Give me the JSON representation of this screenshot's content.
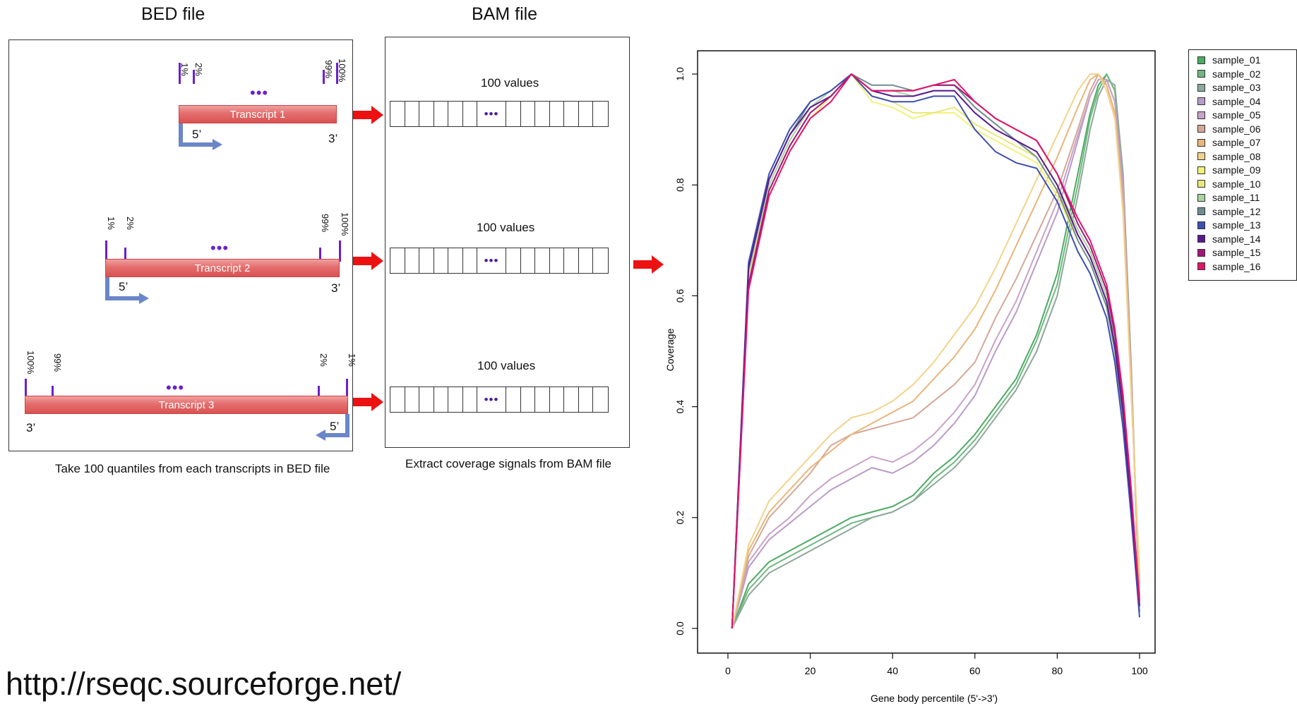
{
  "bed": {
    "title": "BED file",
    "caption": "Take 100 quantiles from each transcripts in BED file",
    "transcripts": [
      {
        "label": "Transcript 1",
        "five": "5’",
        "three": "3’"
      },
      {
        "label": "Transcript 2",
        "five": "5’",
        "three": "3’"
      },
      {
        "label": "Transcript 3",
        "five": "5’",
        "three": "3’"
      }
    ],
    "pct": {
      "p1": "1%",
      "p2": "2%",
      "p99": "99%",
      "p100": "100%"
    },
    "ellipsis": "•••"
  },
  "bam": {
    "title": "BAM file",
    "values_label": "100 values",
    "caption": "Extract coverage signals from BAM file"
  },
  "url": "http://rseqc.sourceforge.net/",
  "colors": {
    "tick_purple": "#6a1fd0",
    "bar_red": "#e06060",
    "arrow_blue": "#6b86c8",
    "arrow_red": "#ee1111"
  },
  "chart_data": {
    "type": "line",
    "title": "",
    "xlabel": "Gene body percentile (5'->3')",
    "ylabel": "Coverage",
    "xlim": [
      0,
      100
    ],
    "ylim": [
      0,
      1
    ],
    "xticks": [
      0,
      20,
      40,
      60,
      80,
      100
    ],
    "yticks": [
      "0.0",
      "0.2",
      "0.4",
      "0.6",
      "0.8",
      "1.0"
    ],
    "legend_position": "outside-top-right",
    "x": [
      1,
      5,
      10,
      15,
      20,
      25,
      30,
      35,
      40,
      45,
      50,
      55,
      60,
      65,
      70,
      75,
      80,
      85,
      88,
      90,
      92,
      94,
      96,
      98,
      100
    ],
    "series": [
      {
        "name": "sample_01",
        "color": "#4daa63",
        "values": [
          0.0,
          0.08,
          0.12,
          0.14,
          0.16,
          0.18,
          0.2,
          0.21,
          0.22,
          0.24,
          0.28,
          0.31,
          0.35,
          0.4,
          0.45,
          0.53,
          0.64,
          0.82,
          0.93,
          0.98,
          1.0,
          0.97,
          0.8,
          0.45,
          0.04
        ]
      },
      {
        "name": "sample_02",
        "color": "#6fb880",
        "values": [
          0.0,
          0.07,
          0.11,
          0.13,
          0.15,
          0.17,
          0.19,
          0.2,
          0.21,
          0.23,
          0.27,
          0.3,
          0.34,
          0.39,
          0.44,
          0.52,
          0.62,
          0.8,
          0.92,
          0.97,
          1.0,
          0.97,
          0.8,
          0.45,
          0.04
        ]
      },
      {
        "name": "sample_03",
        "color": "#8fa89a",
        "values": [
          0.0,
          0.06,
          0.1,
          0.12,
          0.14,
          0.16,
          0.18,
          0.2,
          0.21,
          0.23,
          0.26,
          0.29,
          0.33,
          0.38,
          0.43,
          0.5,
          0.6,
          0.78,
          0.9,
          0.96,
          0.99,
          0.98,
          0.82,
          0.47,
          0.04
        ]
      },
      {
        "name": "sample_04",
        "color": "#b99bc9",
        "values": [
          0.0,
          0.11,
          0.16,
          0.19,
          0.22,
          0.25,
          0.27,
          0.29,
          0.28,
          0.3,
          0.33,
          0.37,
          0.42,
          0.5,
          0.57,
          0.66,
          0.75,
          0.88,
          0.96,
          0.99,
          0.99,
          0.95,
          0.8,
          0.45,
          0.05
        ]
      },
      {
        "name": "sample_05",
        "color": "#c7a3c7",
        "values": [
          0.0,
          0.12,
          0.17,
          0.2,
          0.24,
          0.27,
          0.29,
          0.31,
          0.3,
          0.32,
          0.35,
          0.39,
          0.44,
          0.52,
          0.59,
          0.68,
          0.77,
          0.89,
          0.96,
          0.99,
          0.99,
          0.95,
          0.78,
          0.45,
          0.05
        ]
      },
      {
        "name": "sample_06",
        "color": "#d4a898",
        "values": [
          0.0,
          0.13,
          0.2,
          0.24,
          0.28,
          0.33,
          0.35,
          0.36,
          0.37,
          0.38,
          0.41,
          0.44,
          0.48,
          0.56,
          0.63,
          0.71,
          0.79,
          0.9,
          0.97,
          1.0,
          0.98,
          0.93,
          0.78,
          0.45,
          0.06
        ]
      },
      {
        "name": "sample_07",
        "color": "#eab57a",
        "values": [
          0.0,
          0.14,
          0.21,
          0.25,
          0.29,
          0.32,
          0.35,
          0.37,
          0.39,
          0.41,
          0.45,
          0.49,
          0.54,
          0.61,
          0.69,
          0.77,
          0.85,
          0.94,
          0.99,
          1.0,
          0.98,
          0.93,
          0.75,
          0.42,
          0.08
        ]
      },
      {
        "name": "sample_08",
        "color": "#f3d38a",
        "values": [
          0.0,
          0.15,
          0.23,
          0.27,
          0.31,
          0.35,
          0.38,
          0.39,
          0.41,
          0.44,
          0.48,
          0.53,
          0.58,
          0.65,
          0.73,
          0.81,
          0.89,
          0.97,
          1.0,
          1.0,
          0.97,
          0.92,
          0.75,
          0.42,
          0.1
        ]
      },
      {
        "name": "sample_09",
        "color": "#f2f27a",
        "values": [
          0.0,
          0.62,
          0.78,
          0.86,
          0.92,
          0.96,
          1.0,
          0.95,
          0.94,
          0.92,
          0.93,
          0.93,
          0.9,
          0.88,
          0.86,
          0.84,
          0.78,
          0.7,
          0.66,
          0.62,
          0.58,
          0.5,
          0.38,
          0.22,
          0.04
        ]
      },
      {
        "name": "sample_10",
        "color": "#e8e87a",
        "values": [
          0.0,
          0.63,
          0.79,
          0.87,
          0.93,
          0.96,
          1.0,
          0.96,
          0.95,
          0.93,
          0.93,
          0.94,
          0.91,
          0.89,
          0.87,
          0.85,
          0.79,
          0.71,
          0.67,
          0.63,
          0.59,
          0.51,
          0.39,
          0.22,
          0.04
        ]
      },
      {
        "name": "sample_11",
        "color": "#a9d4a0",
        "values": [
          0.0,
          0.64,
          0.8,
          0.88,
          0.94,
          0.97,
          1.0,
          0.97,
          0.97,
          0.96,
          0.97,
          0.97,
          0.93,
          0.9,
          0.88,
          0.86,
          0.8,
          0.72,
          0.68,
          0.64,
          0.6,
          0.52,
          0.4,
          0.23,
          0.04
        ]
      },
      {
        "name": "sample_12",
        "color": "#6f8f8f",
        "values": [
          0.0,
          0.65,
          0.81,
          0.89,
          0.95,
          0.97,
          1.0,
          0.98,
          0.98,
          0.97,
          0.98,
          0.98,
          0.94,
          0.91,
          0.88,
          0.85,
          0.79,
          0.7,
          0.66,
          0.62,
          0.58,
          0.5,
          0.38,
          0.22,
          0.03
        ]
      },
      {
        "name": "sample_13",
        "color": "#3e4fb0",
        "values": [
          0.0,
          0.66,
          0.82,
          0.9,
          0.95,
          0.97,
          1.0,
          0.96,
          0.95,
          0.95,
          0.96,
          0.96,
          0.9,
          0.86,
          0.84,
          0.83,
          0.77,
          0.68,
          0.64,
          0.6,
          0.56,
          0.48,
          0.36,
          0.2,
          0.02
        ]
      },
      {
        "name": "sample_14",
        "color": "#5a1a8f",
        "values": [
          0.0,
          0.65,
          0.81,
          0.89,
          0.94,
          0.96,
          1.0,
          0.97,
          0.96,
          0.96,
          0.97,
          0.97,
          0.93,
          0.9,
          0.88,
          0.86,
          0.8,
          0.71,
          0.67,
          0.63,
          0.59,
          0.51,
          0.39,
          0.22,
          0.04
        ]
      },
      {
        "name": "sample_15",
        "color": "#a0187a",
        "values": [
          0.0,
          0.62,
          0.79,
          0.87,
          0.93,
          0.96,
          1.0,
          0.97,
          0.97,
          0.97,
          0.98,
          0.98,
          0.95,
          0.92,
          0.9,
          0.88,
          0.82,
          0.73,
          0.69,
          0.65,
          0.61,
          0.53,
          0.41,
          0.24,
          0.04
        ]
      },
      {
        "name": "sample_16",
        "color": "#e0166a",
        "values": [
          0.0,
          0.61,
          0.78,
          0.86,
          0.92,
          0.95,
          1.0,
          0.97,
          0.97,
          0.97,
          0.98,
          0.99,
          0.95,
          0.92,
          0.9,
          0.88,
          0.82,
          0.74,
          0.7,
          0.66,
          0.62,
          0.54,
          0.42,
          0.25,
          0.05
        ]
      }
    ]
  }
}
